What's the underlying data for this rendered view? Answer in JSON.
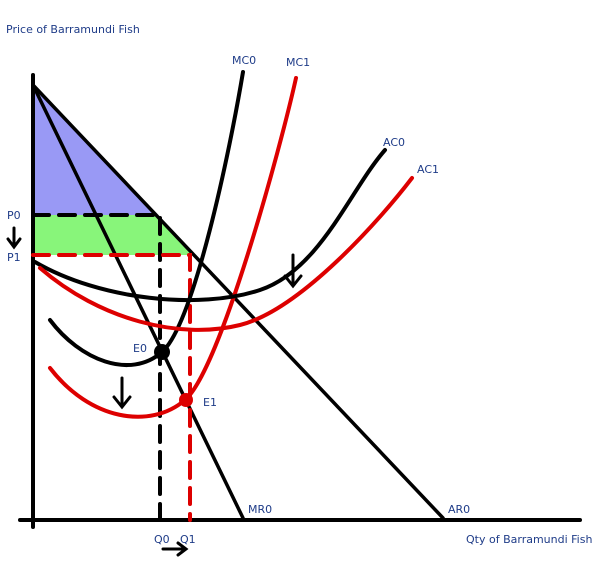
{
  "axes": {
    "y_label": "Price of Barramundi Fish",
    "x_label": "Qty of Barramundi Fish"
  },
  "curves": {
    "mc0": "MC0",
    "mc1": "MC1",
    "ac0": "AC0",
    "ac1": "AC1",
    "mr0": "MR0",
    "ar0": "AR0"
  },
  "prices": {
    "p0": "P0",
    "p1": "P1"
  },
  "quantities": {
    "q0": "Q0",
    "q1": "Q1"
  },
  "points": {
    "e0": "E0",
    "e1": "E1"
  }
}
